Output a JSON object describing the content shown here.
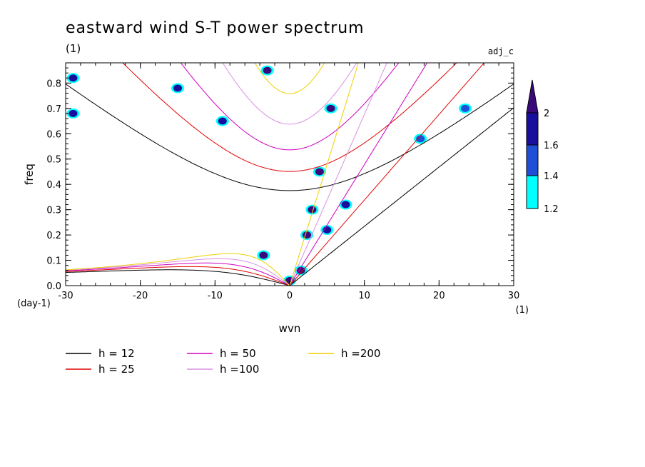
{
  "chart_data": {
    "type": "heatmap",
    "title": "eastward wind S-T power spectrum",
    "subtitle": "(1)",
    "tag": "adj_c",
    "xlabel": "wvn",
    "ylabel": "freq",
    "x_unit": "(1)",
    "y_unit": "(day-1)",
    "xlim": [
      -30,
      30
    ],
    "ylim": [
      0,
      0.88
    ],
    "x_ticks": [
      -30,
      -20,
      -10,
      0,
      10,
      20,
      30
    ],
    "x_tick_labels": [
      "-30",
      "-20",
      "-10",
      "0",
      "10",
      "20",
      "30"
    ],
    "y_ticks": [
      0,
      0.1,
      0.2,
      0.3,
      0.4,
      0.5,
      0.6,
      0.7,
      0.8
    ],
    "y_tick_labels": [
      "0.0",
      "0.1",
      "0.2",
      "0.3",
      "0.4",
      "0.5",
      "0.6",
      "0.7",
      "0.8"
    ],
    "colorbar": {
      "levels": [
        1.2,
        1.4,
        1.6,
        2
      ],
      "labels": [
        "1.2",
        "1.4",
        "1.6",
        "2"
      ],
      "colors": [
        "#00ffff",
        "#1e4fd6",
        "#1a0f9c",
        "#3a0a7a"
      ]
    },
    "dispersion_curves": [
      {
        "label": "h = 12",
        "h": 12,
        "color": "#000000"
      },
      {
        "label": "h = 25",
        "h": 25,
        "color": "#e00000"
      },
      {
        "label": "h = 50",
        "h": 50,
        "color": "#d000c0"
      },
      {
        "label": "h =100",
        "h": 100,
        "color": "#d890e0"
      },
      {
        "label": "h =200",
        "h": 200,
        "color": "#f0d000"
      }
    ],
    "high_power_regions": [
      {
        "x": 0.0,
        "y": 0.02,
        "level": 2
      },
      {
        "x": 1.5,
        "y": 0.06,
        "level": 2
      },
      {
        "x": -3.5,
        "y": 0.12,
        "level": 2
      },
      {
        "x": 2.3,
        "y": 0.2,
        "level": 2
      },
      {
        "x": 3.0,
        "y": 0.3,
        "level": 2
      },
      {
        "x": 4.0,
        "y": 0.45,
        "level": 2
      },
      {
        "x": 5.5,
        "y": 0.7,
        "level": 2
      },
      {
        "x": -3.0,
        "y": 0.85,
        "level": 2
      },
      {
        "x": 5.0,
        "y": 0.22,
        "level": 1.6
      },
      {
        "x": 7.5,
        "y": 0.32,
        "level": 1.6
      },
      {
        "x": -9.0,
        "y": 0.65,
        "level": 1.6
      },
      {
        "x": -15.0,
        "y": 0.78,
        "level": 1.6
      },
      {
        "x": -29.0,
        "y": 0.68,
        "level": 1.6
      },
      {
        "x": -29.0,
        "y": 0.82,
        "level": 1.6
      },
      {
        "x": 17.5,
        "y": 0.58,
        "level": 1.4
      },
      {
        "x": 23.5,
        "y": 0.7,
        "level": 1.4
      }
    ]
  }
}
